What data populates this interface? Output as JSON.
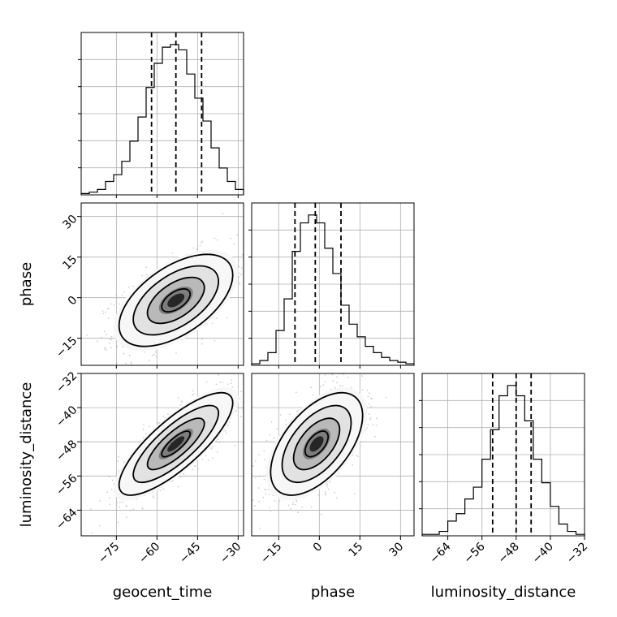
{
  "chart_data": {
    "type": "corner",
    "parameters": [
      {
        "name": "geocent_time",
        "label": "geocent_time",
        "range": [
          -88,
          -28
        ],
        "ticks": [
          -75,
          -60,
          -45,
          -30
        ],
        "quantiles": [
          -62,
          -53,
          -43.5
        ],
        "mean": -53,
        "sd": 10.5
      },
      {
        "name": "phase",
        "label": "phase",
        "range": [
          -25,
          35
        ],
        "ticks": [
          -15,
          0,
          15,
          30
        ],
        "quantiles": [
          -9,
          -1.5,
          8
        ],
        "mean": -1,
        "sd": 8.5
      },
      {
        "name": "luminosity_distance",
        "label": "luminosity_distance",
        "range": [
          -70,
          -32
        ],
        "ticks": [
          -64,
          -56,
          -48,
          -40,
          -32
        ],
        "quantiles": [
          -53.5,
          -48,
          -44.5
        ],
        "mean": -48.5,
        "sd": 6
      }
    ],
    "histograms": [
      {
        "parameter": "geocent_time",
        "bin_edges": [
          -88,
          -85,
          -82,
          -79,
          -76,
          -73,
          -70,
          -67,
          -64,
          -61,
          -58,
          -55,
          -52,
          -49,
          -46,
          -43,
          -40,
          -37,
          -34,
          -31,
          -28
        ],
        "counts": [
          1,
          2,
          4,
          10,
          15,
          25,
          40,
          58,
          80,
          98,
          110,
          112,
          108,
          90,
          72,
          55,
          35,
          20,
          10,
          4
        ]
      },
      {
        "parameter": "phase",
        "bin_edges": [
          -25,
          -22,
          -19,
          -16,
          -13,
          -10,
          -7,
          -4,
          -1,
          2,
          5,
          8,
          11,
          14,
          17,
          20,
          23,
          26,
          29,
          32,
          35
        ],
        "counts": [
          1,
          3,
          8,
          22,
          42,
          72,
          90,
          95,
          90,
          74,
          58,
          38,
          26,
          18,
          12,
          8,
          5,
          3,
          2,
          1
        ]
      },
      {
        "parameter": "luminosity_distance",
        "bin_edges": [
          -70,
          -68,
          -66,
          -64,
          -62,
          -60,
          -58,
          -56,
          -54,
          -52,
          -50,
          -48,
          -46,
          -44,
          -42,
          -40,
          -38,
          -36,
          -34,
          -32
        ],
        "counts": [
          1,
          1,
          3,
          10,
          15,
          25,
          33,
          52,
          72,
          95,
          102,
          95,
          78,
          52,
          36,
          20,
          8,
          3,
          1
        ]
      }
    ],
    "pairs": [
      {
        "x": "geocent_time",
        "y": "phase",
        "correlation": 0.55
      },
      {
        "x": "geocent_time",
        "y": "luminosity_distance",
        "correlation": 0.8
      },
      {
        "x": "phase",
        "y": "luminosity_distance",
        "correlation": 0.55
      }
    ],
    "contour_levels_sigma": [
      0.5,
      1.0,
      1.5,
      2.0
    ],
    "grid": true
  },
  "colors": {
    "ink": "#000000",
    "scatter": "#bdbdbd",
    "grid": "#b0b0b0",
    "background": "#ffffff"
  }
}
